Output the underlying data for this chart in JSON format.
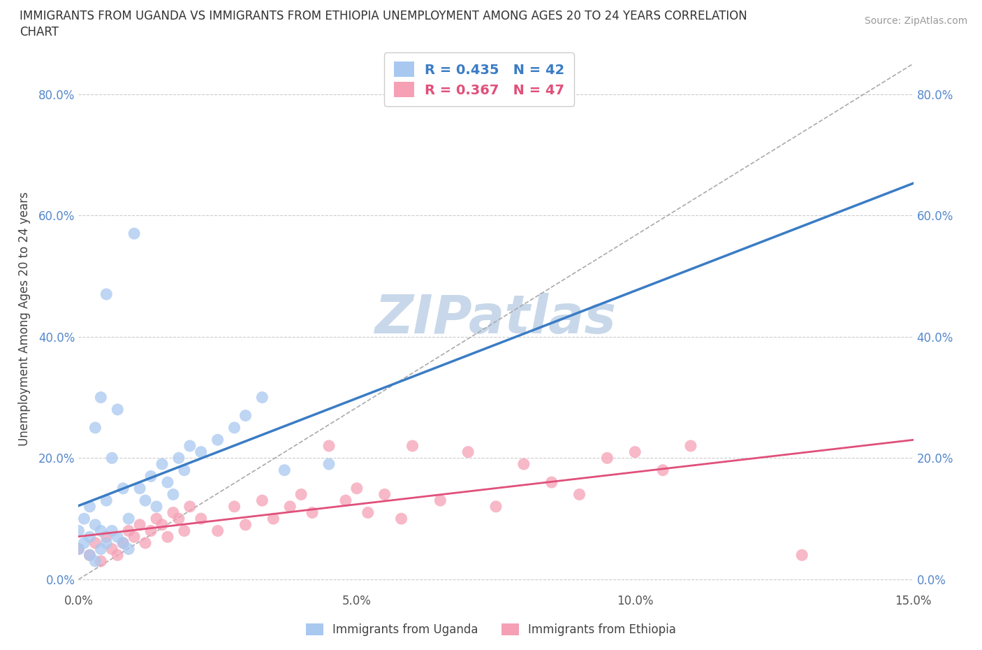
{
  "title_line1": "IMMIGRANTS FROM UGANDA VS IMMIGRANTS FROM ETHIOPIA UNEMPLOYMENT AMONG AGES 20 TO 24 YEARS CORRELATION",
  "title_line2": "CHART",
  "source": "Source: ZipAtlas.com",
  "ylabel": "Unemployment Among Ages 20 to 24 years",
  "legend_uganda": "Immigrants from Uganda",
  "legend_ethiopia": "Immigrants from Ethiopia",
  "R_uganda": 0.435,
  "N_uganda": 42,
  "R_ethiopia": 0.367,
  "N_ethiopia": 47,
  "xlim": [
    0.0,
    0.15
  ],
  "ylim": [
    -0.02,
    0.88
  ],
  "color_uganda": "#a8c8f0",
  "color_ethiopia": "#f5a0b5",
  "line_color_uganda": "#3a7cc4",
  "line_color_ethiopia": "#e0507a",
  "background_color": "#ffffff",
  "watermark": "ZIPatlas",
  "watermark_color": "#c8d8ea",
  "grid_color": "#cccccc",
  "uganda_x": [
    0.0,
    0.0,
    0.001,
    0.001,
    0.002,
    0.002,
    0.002,
    0.003,
    0.003,
    0.003,
    0.004,
    0.004,
    0.004,
    0.005,
    0.005,
    0.005,
    0.006,
    0.006,
    0.007,
    0.007,
    0.008,
    0.008,
    0.009,
    0.009,
    0.01,
    0.011,
    0.012,
    0.013,
    0.014,
    0.015,
    0.016,
    0.017,
    0.018,
    0.019,
    0.02,
    0.022,
    0.025,
    0.028,
    0.03,
    0.033,
    0.037,
    0.045
  ],
  "uganda_y": [
    0.05,
    0.08,
    0.06,
    0.1,
    0.04,
    0.07,
    0.12,
    0.03,
    0.09,
    0.25,
    0.05,
    0.08,
    0.3,
    0.06,
    0.13,
    0.47,
    0.08,
    0.2,
    0.07,
    0.28,
    0.06,
    0.15,
    0.05,
    0.1,
    0.57,
    0.15,
    0.13,
    0.17,
    0.12,
    0.19,
    0.16,
    0.14,
    0.2,
    0.18,
    0.22,
    0.21,
    0.23,
    0.25,
    0.27,
    0.3,
    0.18,
    0.19
  ],
  "ethiopia_x": [
    0.0,
    0.002,
    0.003,
    0.004,
    0.005,
    0.006,
    0.007,
    0.008,
    0.009,
    0.01,
    0.011,
    0.012,
    0.013,
    0.014,
    0.015,
    0.016,
    0.017,
    0.018,
    0.019,
    0.02,
    0.022,
    0.025,
    0.028,
    0.03,
    0.033,
    0.035,
    0.038,
    0.04,
    0.042,
    0.045,
    0.048,
    0.05,
    0.052,
    0.055,
    0.058,
    0.06,
    0.065,
    0.07,
    0.075,
    0.08,
    0.085,
    0.09,
    0.095,
    0.1,
    0.105,
    0.11,
    0.13
  ],
  "ethiopia_y": [
    0.05,
    0.04,
    0.06,
    0.03,
    0.07,
    0.05,
    0.04,
    0.06,
    0.08,
    0.07,
    0.09,
    0.06,
    0.08,
    0.1,
    0.09,
    0.07,
    0.11,
    0.1,
    0.08,
    0.12,
    0.1,
    0.08,
    0.12,
    0.09,
    0.13,
    0.1,
    0.12,
    0.14,
    0.11,
    0.22,
    0.13,
    0.15,
    0.11,
    0.14,
    0.1,
    0.22,
    0.13,
    0.21,
    0.12,
    0.19,
    0.16,
    0.14,
    0.2,
    0.21,
    0.18,
    0.22,
    0.04
  ]
}
